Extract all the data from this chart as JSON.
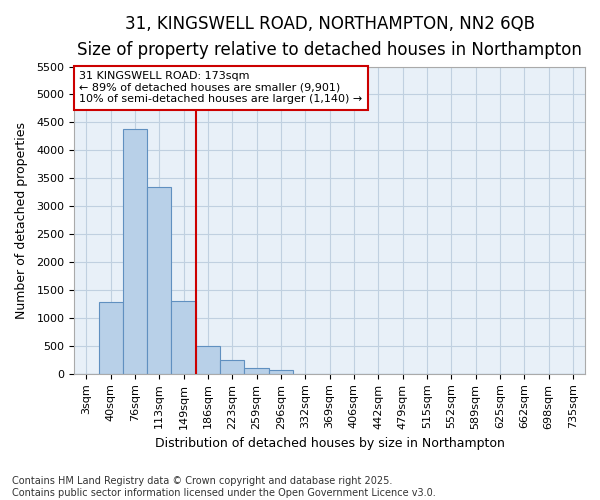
{
  "title_line1": "31, KINGSWELL ROAD, NORTHAMPTON, NN2 6QB",
  "title_line2": "Size of property relative to detached houses in Northampton",
  "xlabel": "Distribution of detached houses by size in Northampton",
  "ylabel": "Number of detached properties",
  "categories": [
    "3sqm",
    "40sqm",
    "76sqm",
    "113sqm",
    "149sqm",
    "186sqm",
    "223sqm",
    "259sqm",
    "296sqm",
    "332sqm",
    "369sqm",
    "406sqm",
    "442sqm",
    "479sqm",
    "515sqm",
    "552sqm",
    "589sqm",
    "625sqm",
    "662sqm",
    "698sqm",
    "735sqm"
  ],
  "values": [
    0,
    1280,
    4380,
    3350,
    1300,
    500,
    240,
    100,
    75,
    0,
    0,
    0,
    0,
    0,
    0,
    0,
    0,
    0,
    0,
    0,
    0
  ],
  "bar_color": "#b8d0e8",
  "bar_edge_color": "#6090c0",
  "grid_color": "#c0d0e0",
  "background_color": "#e8f0f8",
  "vline_color": "#cc0000",
  "vline_pos": 4.5,
  "annotation_text": "31 KINGSWELL ROAD: 173sqm\n← 89% of detached houses are smaller (9,901)\n10% of semi-detached houses are larger (1,140) →",
  "annotation_box_color": "#ffffff",
  "annotation_box_edge": "#cc0000",
  "ylim": [
    0,
    5500
  ],
  "yticks": [
    0,
    500,
    1000,
    1500,
    2000,
    2500,
    3000,
    3500,
    4000,
    4500,
    5000,
    5500
  ],
  "footer_line1": "Contains HM Land Registry data © Crown copyright and database right 2025.",
  "footer_line2": "Contains public sector information licensed under the Open Government Licence v3.0.",
  "title_fontsize": 12,
  "subtitle_fontsize": 10,
  "tick_fontsize": 8,
  "label_fontsize": 9,
  "footer_fontsize": 7,
  "annot_fontsize": 8
}
